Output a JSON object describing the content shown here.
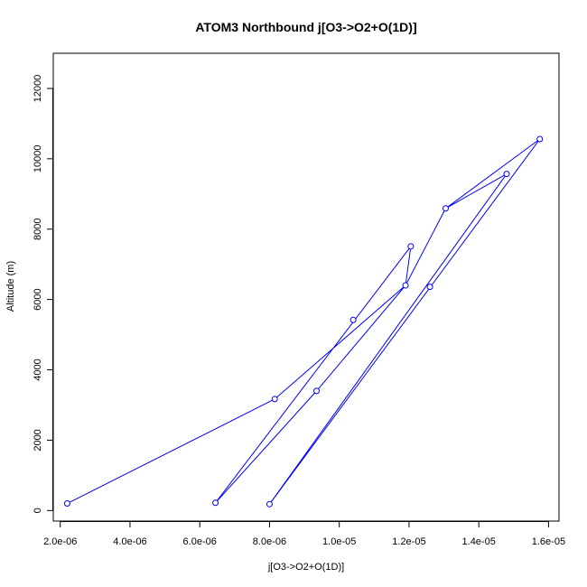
{
  "chart_data": {
    "type": "line",
    "title": "ATOM3 Northbound j[O3->O2+O(1D)]",
    "xlabel": "j[O3->O2+O(1D)]",
    "ylabel": "Altitude (m)",
    "xlim": [
      1.8e-06,
      1.63e-05
    ],
    "ylim": [
      -300,
      13000
    ],
    "x_ticks": [
      2e-06,
      4e-06,
      6e-06,
      8e-06,
      1e-05,
      1.2e-05,
      1.4e-05,
      1.6e-05
    ],
    "x_tick_labels": [
      "2.0e-06",
      "4.0e-06",
      "6.0e-06",
      "8.0e-06",
      "1.0e-05",
      "1.2e-05",
      "1.4e-05",
      "1.6e-05"
    ],
    "y_ticks": [
      0,
      2000,
      4000,
      6000,
      8000,
      10000,
      12000
    ],
    "y_tick_labels": [
      "0",
      "2000",
      "4000",
      "6000",
      "8000",
      "10000",
      "12000"
    ],
    "grid": false,
    "legend": "none",
    "series": [
      {
        "color": "#0000ff",
        "marker": "open-circle",
        "points": [
          {
            "x": 2.2e-06,
            "y": 200
          },
          {
            "x": 8.15e-06,
            "y": 3170
          },
          {
            "x": 1.19e-05,
            "y": 6400
          },
          {
            "x": 1.48e-05,
            "y": 9570
          },
          {
            "x": 8e-06,
            "y": 180
          },
          {
            "x": 1.575e-05,
            "y": 10560
          },
          {
            "x": 1.305e-05,
            "y": 8590
          },
          {
            "x": 1.26e-05,
            "y": 6360
          },
          {
            "x": 6.45e-06,
            "y": 220
          },
          {
            "x": 1.205e-05,
            "y": 7510
          },
          {
            "x": 9.35e-06,
            "y": 3400
          },
          {
            "x": 1.04e-05,
            "y": 5420
          }
        ],
        "path": [
          {
            "x": 2.2e-06,
            "y": 200
          },
          {
            "x": 8.15e-06,
            "y": 3170
          },
          {
            "x": 1.19e-05,
            "y": 6400
          },
          {
            "x": 1.205e-05,
            "y": 7510
          },
          {
            "x": 6.45e-06,
            "y": 220
          },
          {
            "x": 9.35e-06,
            "y": 3400
          },
          {
            "x": 1.19e-05,
            "y": 6400
          },
          {
            "x": 1.305e-05,
            "y": 8590
          },
          {
            "x": 1.48e-05,
            "y": 9570
          },
          {
            "x": 8e-06,
            "y": 180
          },
          {
            "x": 1.575e-05,
            "y": 10560
          },
          {
            "x": 1.305e-05,
            "y": 8590
          }
        ]
      }
    ]
  }
}
